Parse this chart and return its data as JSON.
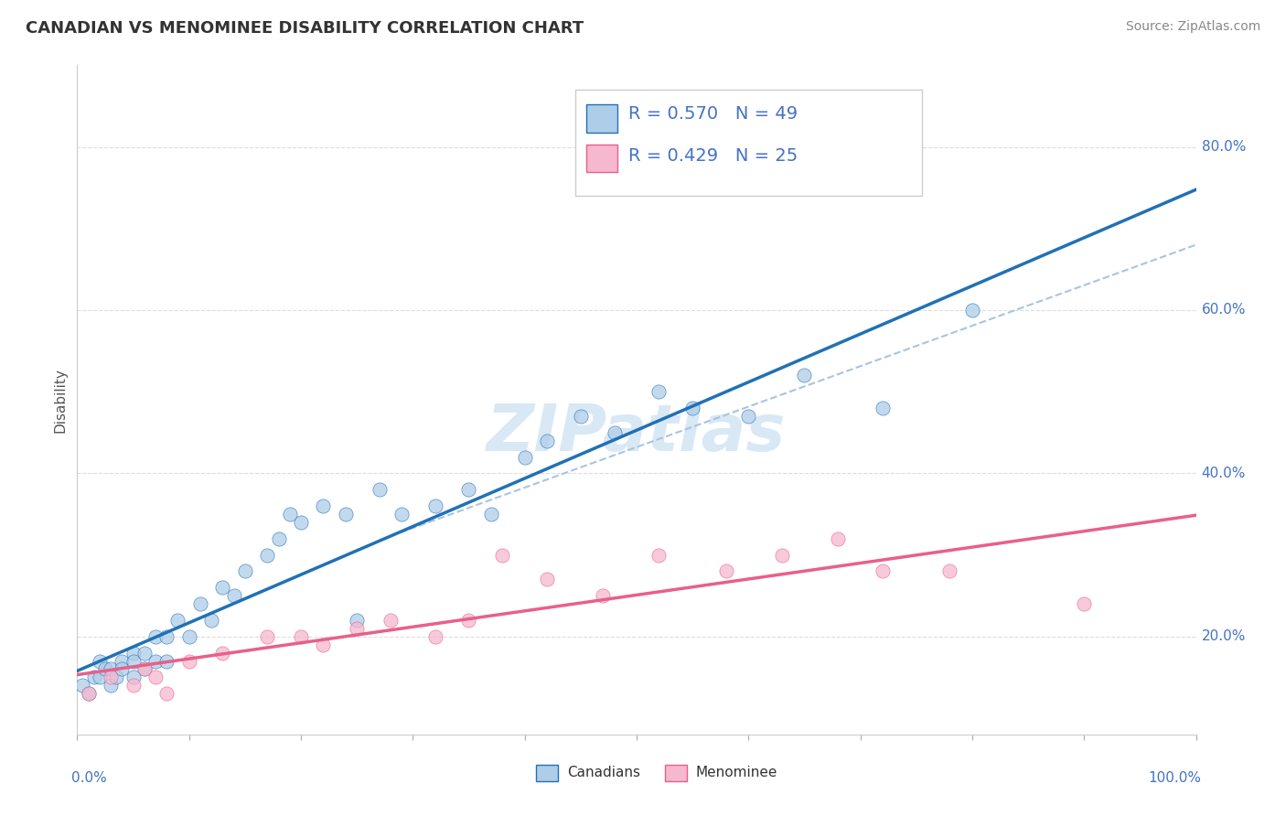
{
  "title": "CANADIAN VS MENOMINEE DISABILITY CORRELATION CHART",
  "source": "Source: ZipAtlas.com",
  "ylabel": "Disability",
  "r_canadian": 0.57,
  "n_canadian": 49,
  "r_menominee": 0.429,
  "n_menominee": 25,
  "canadians_dot_color": "#aecde8",
  "canadians_line_color": "#2171b5",
  "menominee_dot_color": "#f5b8cf",
  "menominee_line_color": "#e8608a",
  "dashed_line_color": "#aac4e0",
  "grid_color": "#dddddd",
  "watermark_text": "ZIPatlas",
  "watermark_color": "#d8e8f5",
  "canadians_x": [
    0.5,
    1,
    1.5,
    2,
    2,
    2.5,
    3,
    3,
    3.5,
    4,
    4,
    5,
    5,
    5,
    6,
    6,
    7,
    7,
    8,
    8,
    9,
    10,
    11,
    12,
    13,
    14,
    15,
    17,
    18,
    19,
    20,
    22,
    24,
    25,
    27,
    29,
    32,
    35,
    37,
    40,
    42,
    45,
    48,
    52,
    55,
    60,
    65,
    72,
    80
  ],
  "canadians_y": [
    14,
    13,
    15,
    15,
    17,
    16,
    14,
    16,
    15,
    17,
    16,
    18,
    15,
    17,
    16,
    18,
    17,
    20,
    20,
    17,
    22,
    20,
    24,
    22,
    26,
    25,
    28,
    30,
    32,
    35,
    34,
    36,
    35,
    22,
    38,
    35,
    36,
    38,
    35,
    42,
    44,
    47,
    45,
    50,
    48,
    47,
    52,
    48,
    60
  ],
  "menominee_x": [
    1,
    3,
    5,
    6,
    7,
    8,
    10,
    13,
    17,
    20,
    22,
    25,
    28,
    32,
    35,
    38,
    42,
    47,
    52,
    58,
    63,
    68,
    72,
    78,
    90
  ],
  "menominee_y": [
    13,
    15,
    14,
    16,
    15,
    13,
    17,
    18,
    20,
    20,
    19,
    21,
    22,
    20,
    22,
    30,
    27,
    25,
    30,
    28,
    30,
    32,
    28,
    28,
    24
  ],
  "xlim": [
    0,
    100
  ],
  "ylim": [
    8,
    90
  ],
  "ytick_pcts": [
    20,
    40,
    60,
    80
  ],
  "xtick_positions": [
    0,
    10,
    20,
    30,
    40,
    50,
    60,
    70,
    80,
    90,
    100
  ],
  "title_fontsize": 13,
  "tick_label_fontsize": 11,
  "legend_fontsize": 14
}
